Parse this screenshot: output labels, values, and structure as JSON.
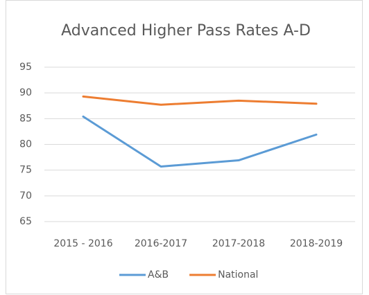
{
  "chart_data": {
    "type": "line",
    "title": "Advanced Higher Pass Rates A-D",
    "categories": [
      "2015 - 2016",
      "2016-2017",
      "2017-2018",
      "2018-2019"
    ],
    "series": [
      {
        "name": "A&B",
        "color": "#5b9bd5",
        "values": [
          85.4,
          75.7,
          76.9,
          81.9
        ]
      },
      {
        "name": "National",
        "color": "#ed7d31",
        "values": [
          89.3,
          87.7,
          88.5,
          87.9
        ]
      }
    ],
    "ylim": [
      65,
      95
    ],
    "yticks": [
      65,
      70,
      75,
      80,
      85,
      90,
      95
    ],
    "grid": true,
    "legend": "bottom"
  }
}
